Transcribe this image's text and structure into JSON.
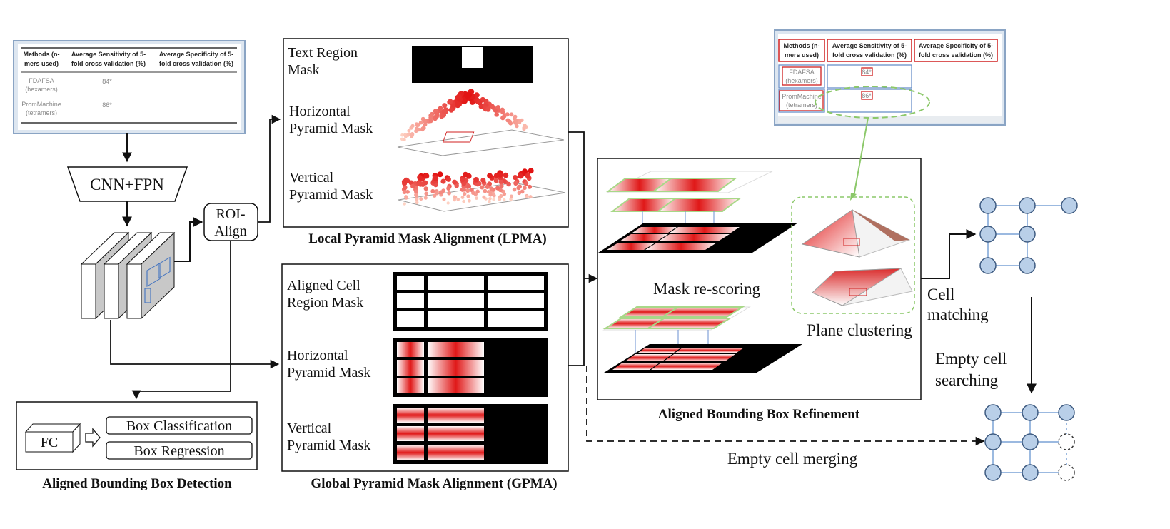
{
  "input_table": {
    "headers": [
      "Methods (n-",
      "mers used)",
      "Average Sensitivity of 5-",
      "fold cross validation (%)",
      "Average Specificity of 5-",
      "fold cross validation (%)"
    ],
    "rows": [
      {
        "method_1": "FDAFSA",
        "method_2": "(hexamers)",
        "value": "84*"
      },
      {
        "method_2": "(tetramers)",
        "method_1": "PromMachine",
        "value": "86*"
      }
    ]
  },
  "output_table": {
    "headers": [
      "Methods (n-",
      "mers used)",
      "Average Sensitivity of 5-",
      "fold cross validation (%)",
      "Average Specificity of 5-",
      "fold cross validation (%)"
    ],
    "rows": [
      {
        "method_1": "FDAFSA",
        "method_2": "(hexamers)",
        "value": "84*"
      },
      {
        "method_1": "PromMachine",
        "method_2": "(tetramers)",
        "value": "86*"
      }
    ]
  },
  "backbone": {
    "label": "CNN+FPN"
  },
  "roi_align": {
    "line1": "ROI-",
    "line2": "Align"
  },
  "detection": {
    "fc_label": "FC",
    "box_classification": "Box Classification",
    "box_regression": "Box Regression",
    "caption": "Aligned Bounding Box Detection"
  },
  "lpma": {
    "text_region_mask": [
      "Text Region",
      "Mask"
    ],
    "horizontal_mask": [
      "Horizontal",
      "Pyramid Mask"
    ],
    "vertical_mask": [
      "Vertical",
      "Pyramid Mask"
    ],
    "caption": "Local Pyramid Mask Alignment (LPMA)"
  },
  "gpma": {
    "aligned_cell_mask": [
      "Aligned Cell",
      "Region  Mask"
    ],
    "horizontal_mask": [
      "Horizontal",
      "Pyramid Mask"
    ],
    "vertical_mask": [
      "Vertical",
      "Pyramid Mask"
    ],
    "caption": "Global Pyramid Mask Alignment (GPMA)"
  },
  "refinement": {
    "mask_rescoring": "Mask re-scoring",
    "plane_clustering": "Plane clustering",
    "caption": "Aligned Bounding Box Refinement"
  },
  "cell_matching": [
    "Cell",
    "matching"
  ],
  "empty_cell_searching": [
    "Empty cell",
    "searching"
  ],
  "empty_cell_merging": "Empty cell merging",
  "colors": {
    "node_fill": "#b9cfe8",
    "node_stroke": "#3d5a80",
    "mask_red": "#e02020",
    "cluster_green": "#8cc86a"
  }
}
